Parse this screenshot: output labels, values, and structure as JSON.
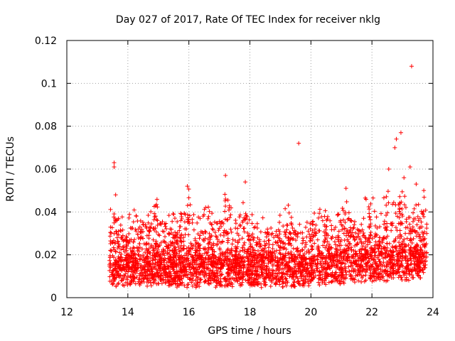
{
  "chart_data": {
    "type": "scatter",
    "title": "Day 027 of 2017, Rate Of TEC Index for receiver nklg",
    "xlabel": "GPS time / hours",
    "ylabel": "ROTI / TECUs",
    "xlim": [
      12,
      24
    ],
    "ylim": [
      0,
      0.12
    ],
    "x_ticks": [
      12,
      14,
      16,
      18,
      20,
      22,
      24
    ],
    "x_tick_labels": [
      "12",
      "14",
      "16",
      "18",
      "20",
      "22",
      "24"
    ],
    "y_ticks": [
      0,
      0.02,
      0.04,
      0.06,
      0.08,
      0.1,
      0.12
    ],
    "y_tick_labels": [
      "0",
      "0.02",
      "0.04",
      "0.06",
      "0.08",
      "0.1",
      "0.12"
    ],
    "grid": true,
    "marker": "+",
    "series": [
      {
        "name": "ROTI",
        "color": "#ff0000",
        "x_range": [
          13.4,
          23.8
        ],
        "typical_range": [
          0.005,
          0.035
        ],
        "notable_points": [
          {
            "x": 13.55,
            "y": 0.063
          },
          {
            "x": 13.55,
            "y": 0.061
          },
          {
            "x": 13.6,
            "y": 0.048
          },
          {
            "x": 15.95,
            "y": 0.052
          },
          {
            "x": 17.2,
            "y": 0.057
          },
          {
            "x": 17.85,
            "y": 0.054
          },
          {
            "x": 19.6,
            "y": 0.072
          },
          {
            "x": 21.15,
            "y": 0.051
          },
          {
            "x": 22.55,
            "y": 0.06
          },
          {
            "x": 22.8,
            "y": 0.074
          },
          {
            "x": 22.75,
            "y": 0.07
          },
          {
            "x": 22.95,
            "y": 0.077
          },
          {
            "x": 23.05,
            "y": 0.056
          },
          {
            "x": 23.3,
            "y": 0.108
          },
          {
            "x": 23.25,
            "y": 0.061
          },
          {
            "x": 23.7,
            "y": 0.05
          },
          {
            "x": 23.45,
            "y": 0.053
          }
        ]
      }
    ]
  }
}
